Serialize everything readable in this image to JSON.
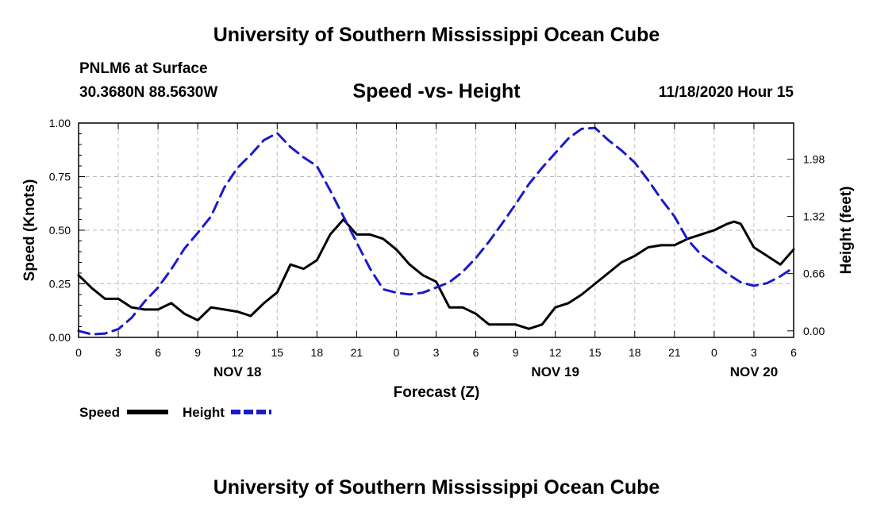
{
  "header": {
    "title": "University of Southern Mississippi Ocean Cube",
    "station": "PNLM6 at Surface",
    "coords": "30.3680N 88.5630W",
    "chart_title": "Speed -vs- Height",
    "datetime": "11/18/2020 Hour 15"
  },
  "footer": {
    "title": "University of Southern Mississippi Ocean Cube"
  },
  "colors": {
    "speed": "#000000",
    "height": "#1a1acc",
    "grid": "#bbbbbb"
  },
  "chart_data": {
    "type": "line",
    "title": "Speed -vs- Height",
    "xlabel": "Forecast (Z)",
    "ylabel": "Speed (Knots)",
    "y2label": "Height (feet)",
    "xlim": [
      0,
      54
    ],
    "ylim": [
      0,
      1.0
    ],
    "y2lim": [
      -0.075,
      2.396
    ],
    "x_ticks": [
      0,
      3,
      6,
      9,
      12,
      15,
      18,
      21,
      24,
      27,
      30,
      33,
      36,
      39,
      42,
      45,
      48,
      51,
      54
    ],
    "x_tick_labels": [
      "0",
      "3",
      "6",
      "9",
      "12",
      "15",
      "18",
      "21",
      "0",
      "3",
      "6",
      "9",
      "12",
      "15",
      "18",
      "21",
      "0",
      "3",
      "6"
    ],
    "y_ticks": [
      0,
      0.25,
      0.5,
      0.75,
      1.0
    ],
    "y_tick_labels": [
      "0.00",
      "0.25",
      "0.50",
      "0.75",
      "1.00"
    ],
    "y2_ticks": [
      0,
      0.66,
      1.32,
      1.98
    ],
    "y2_tick_labels": [
      "0.00",
      "0.66",
      "1.32",
      "1.98"
    ],
    "day_labels": [
      {
        "x": 12,
        "label": "NOV 18"
      },
      {
        "x": 36,
        "label": "NOV 19"
      },
      {
        "x": 51,
        "label": "NOV 20"
      }
    ],
    "grid": true,
    "legend_position": "bottom-left",
    "series": [
      {
        "name": "Speed",
        "axis": "left",
        "style": "solid",
        "x": [
          0,
          1,
          2,
          3,
          4,
          5,
          6,
          7,
          8,
          9,
          10,
          11,
          12,
          13,
          14,
          15,
          16,
          17,
          18,
          19,
          20,
          21,
          22,
          23,
          24,
          25,
          26,
          27,
          28,
          29,
          30,
          31,
          32,
          33,
          34,
          35,
          36,
          37,
          38,
          39,
          40,
          41,
          42,
          43,
          44,
          45,
          46,
          47,
          48,
          49,
          49.5,
          50,
          51,
          52,
          53,
          54
        ],
        "values": [
          0.29,
          0.23,
          0.18,
          0.18,
          0.14,
          0.13,
          0.13,
          0.16,
          0.11,
          0.08,
          0.14,
          0.13,
          0.12,
          0.1,
          0.16,
          0.21,
          0.34,
          0.32,
          0.36,
          0.48,
          0.55,
          0.48,
          0.48,
          0.46,
          0.41,
          0.34,
          0.29,
          0.26,
          0.14,
          0.14,
          0.11,
          0.06,
          0.06,
          0.06,
          0.04,
          0.06,
          0.14,
          0.16,
          0.2,
          0.25,
          0.3,
          0.35,
          0.38,
          0.42,
          0.43,
          0.43,
          0.46,
          0.48,
          0.5,
          0.53,
          0.54,
          0.53,
          0.42,
          0.38,
          0.34,
          0.41
        ]
      },
      {
        "name": "Height",
        "axis": "right",
        "style": "dashed",
        "x": [
          0,
          1,
          2,
          3,
          4,
          5,
          6,
          7,
          8,
          9,
          10,
          11,
          12,
          13,
          14,
          15,
          16,
          17,
          18,
          19,
          20,
          21,
          22,
          23,
          24,
          25,
          26,
          27,
          28,
          29,
          30,
          31,
          32,
          33,
          34,
          35,
          36,
          37,
          38,
          39,
          40,
          41,
          42,
          43,
          44,
          45,
          46,
          47,
          48,
          49,
          50,
          51,
          52,
          53,
          54
        ],
        "values": [
          0.0,
          -0.04,
          -0.03,
          0.02,
          0.15,
          0.34,
          0.5,
          0.71,
          0.95,
          1.13,
          1.32,
          1.65,
          1.88,
          2.03,
          2.2,
          2.28,
          2.12,
          2.0,
          1.9,
          1.62,
          1.32,
          1.02,
          0.72,
          0.48,
          0.44,
          0.42,
          0.44,
          0.5,
          0.56,
          0.68,
          0.84,
          1.03,
          1.24,
          1.46,
          1.69,
          1.88,
          2.05,
          2.22,
          2.33,
          2.34,
          2.2,
          2.08,
          1.94,
          1.74,
          1.52,
          1.32,
          1.05,
          0.88,
          0.77,
          0.66,
          0.56,
          0.52,
          0.55,
          0.63,
          0.73
        ]
      }
    ]
  }
}
